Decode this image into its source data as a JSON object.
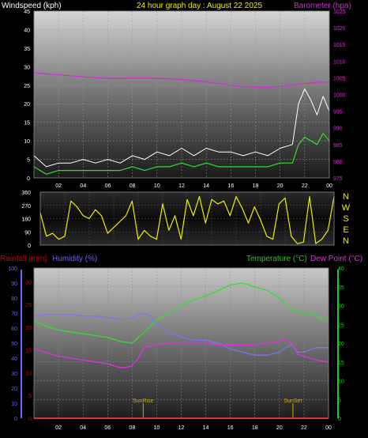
{
  "header": {
    "left_title": "Windspeed (kph)",
    "center_title": "24 hour graph day : August 22 2025",
    "right_title": "Barometer (hpa)"
  },
  "footer_titles": {
    "rain": "Rainfall (mm)",
    "humidity": "Humidity (%)",
    "temperature": "Temperature (°C)",
    "dewpoint": "Dew Point (°C)"
  },
  "annotations": {
    "sunrise": "SunRise",
    "sunset": "SunSet"
  },
  "colors": {
    "wind_gust": "#ffffff",
    "wind_avg": "#33dd33",
    "barometer": "#cc33cc",
    "direction": "#eeee00",
    "humidity": "#7777ee",
    "temperature": "#33dd33",
    "dewpoint": "#dd33dd",
    "rain": "#ff0000",
    "sun_marker": "#ccaa00",
    "rain_axis": "#cc0000",
    "humidity_axis": "#6666ff",
    "temp_axis": "#22cc22"
  },
  "chart_data": [
    {
      "type": "line",
      "title": "24 hour graph day : August 22 2025",
      "ylabel": "Windspeed (kph)",
      "y2label": "Barometer (hpa)",
      "xlim": [
        0,
        24
      ],
      "ylim": [
        0,
        45
      ],
      "y2lim": [
        975,
        1025
      ],
      "x_ticks": [
        "02",
        "04",
        "06",
        "08",
        "10",
        "12",
        "14",
        "16",
        "18",
        "20",
        "22",
        "00"
      ],
      "y_ticks": [
        "0",
        "5",
        "10",
        "15",
        "20",
        "25",
        "30",
        "35",
        "40",
        "45"
      ],
      "y2_ticks": [
        "975",
        "980",
        "985",
        "990",
        "995",
        "1000",
        "1005",
        "1010",
        "1015",
        "1020",
        "1025"
      ],
      "grid": true,
      "series": [
        {
          "name": "Windspeed (kph)",
          "color": "#ffffff",
          "x": [
            0,
            1,
            2,
            3,
            4,
            5,
            6,
            7,
            8,
            9,
            10,
            11,
            12,
            13,
            14,
            15,
            16,
            17,
            18,
            19,
            20,
            21,
            21.5,
            22,
            22.5,
            23,
            23.5,
            24
          ],
          "y": [
            6,
            3,
            4,
            4,
            5,
            4,
            5,
            4,
            6,
            5,
            7,
            6,
            8,
            6,
            8,
            7,
            7,
            6,
            7,
            6,
            8,
            9,
            20,
            24,
            21,
            17,
            22,
            18
          ]
        },
        {
          "name": "Wind avg",
          "color": "#33dd33",
          "x": [
            0,
            1,
            2,
            3,
            4,
            5,
            6,
            7,
            8,
            9,
            10,
            11,
            12,
            13,
            14,
            15,
            16,
            17,
            18,
            19,
            20,
            21,
            21.5,
            22,
            22.5,
            23,
            23.5,
            24
          ],
          "y": [
            3,
            1,
            2,
            2,
            2,
            2,
            2,
            2,
            3,
            2,
            3,
            3,
            4,
            3,
            4,
            3,
            3,
            3,
            3,
            3,
            4,
            4,
            9,
            11,
            10,
            9,
            12,
            10
          ]
        },
        {
          "name": "Barometer (hpa)",
          "color": "#cc33cc",
          "x": [
            0,
            1,
            2,
            3,
            4,
            5,
            6,
            7,
            8,
            9,
            10,
            11,
            12,
            13,
            14,
            15,
            16,
            17,
            18,
            19,
            20,
            21,
            22,
            23,
            24
          ],
          "y": [
            1006.5,
            1006.2,
            1005.9,
            1005.6,
            1005.3,
            1005.0,
            1004.8,
            1004.8,
            1004.9,
            1004.9,
            1004.8,
            1004.7,
            1004.5,
            1004.2,
            1003.8,
            1003.3,
            1002.8,
            1002.4,
            1002.1,
            1002.1,
            1002.4,
            1002.8,
            1003.3,
            1003.6,
            1003.8
          ]
        }
      ]
    },
    {
      "type": "line",
      "ylabel": "Wind direction",
      "xlim": [
        0,
        24
      ],
      "ylim": [
        0,
        360
      ],
      "y_ticks": [
        "0",
        "90",
        "180",
        "270",
        "360"
      ],
      "direction_labels": [
        "N",
        "W",
        "S",
        "E",
        "N"
      ],
      "series": [
        {
          "name": "Wind direction",
          "color": "#eeee00",
          "x": [
            0,
            0.5,
            1,
            1.5,
            2,
            2.5,
            3,
            3.5,
            4,
            4.5,
            5,
            5.5,
            6,
            6.5,
            7,
            7.5,
            8,
            8.5,
            9,
            9.5,
            10,
            10.5,
            11,
            11.5,
            12,
            12.5,
            13,
            13.5,
            14,
            14.5,
            15,
            15.5,
            16,
            16.5,
            17,
            17.5,
            18,
            18.5,
            19,
            19.5,
            20,
            20.5,
            21,
            21.5,
            22,
            22.5,
            23,
            23.5,
            24
          ],
          "y": [
            220,
            60,
            80,
            40,
            60,
            300,
            260,
            200,
            180,
            240,
            200,
            80,
            120,
            160,
            200,
            300,
            40,
            100,
            60,
            40,
            280,
            100,
            200,
            40,
            310,
            200,
            330,
            150,
            310,
            280,
            300,
            200,
            330,
            250,
            150,
            260,
            170,
            60,
            40,
            280,
            320,
            60,
            10,
            20,
            330,
            10,
            40,
            100,
            330
          ]
        }
      ]
    },
    {
      "type": "line",
      "xlim": [
        0,
        24
      ],
      "y_left_label": "Rainfall (mm)",
      "y_left2_label": "Humidity (%)",
      "y_right_label": "Temperature (°C)",
      "rain_ticks": [
        "0",
        "5",
        "10",
        "15",
        "20",
        "25",
        "30"
      ],
      "humidity_ticks": [
        "0",
        "10",
        "20",
        "30",
        "40",
        "50",
        "60",
        "70",
        "80",
        "90",
        "100"
      ],
      "temp_ticks": [
        "0",
        "5",
        "10",
        "15",
        "20",
        "25",
        "30",
        "35",
        "40"
      ],
      "x_ticks": [
        "02",
        "04",
        "06",
        "08",
        "10",
        "12",
        "14",
        "16",
        "18",
        "20",
        "22",
        "00"
      ],
      "sunrise_x": 8.9,
      "sunset_x": 21.1,
      "series": [
        {
          "name": "Humidity (%)",
          "axis": "humidity",
          "color": "#7777ee",
          "x": [
            0,
            1,
            2,
            3,
            4,
            5,
            6,
            7,
            7.5,
            8,
            8.5,
            9,
            9.5,
            10,
            11,
            12,
            13,
            14,
            15,
            16,
            17,
            18,
            19,
            20,
            20.5,
            21,
            21.5,
            22,
            23,
            24
          ],
          "y": [
            68,
            69,
            69,
            69,
            68,
            68,
            67,
            66,
            66,
            67,
            69,
            70,
            68,
            62,
            57,
            54,
            52,
            52,
            50,
            46,
            44,
            42,
            42,
            44,
            47,
            49,
            44,
            44,
            47,
            47
          ]
        },
        {
          "name": "Temperature (°C)",
          "axis": "temp",
          "color": "#33dd33",
          "x": [
            0,
            1,
            2,
            3,
            4,
            5,
            6,
            7,
            8,
            9,
            10,
            11,
            12,
            13,
            14,
            15,
            16,
            17,
            18,
            19,
            20,
            21,
            22,
            23,
            23.5,
            24
          ],
          "y": [
            26,
            24.5,
            23.5,
            23,
            22.5,
            22,
            21.5,
            20.5,
            20,
            23,
            26,
            28,
            30,
            31.5,
            32.5,
            34,
            35.5,
            36,
            35,
            34,
            32,
            29,
            28,
            27.5,
            26,
            27
          ]
        },
        {
          "name": "Dew Point (°C)",
          "axis": "temp",
          "color": "#dd33dd",
          "x": [
            0,
            1,
            2,
            3,
            4,
            5,
            6,
            7,
            7.5,
            8,
            8.5,
            9,
            10,
            11,
            12,
            13,
            14,
            15,
            16,
            17,
            18,
            19,
            20,
            20.5,
            21,
            21.5,
            22,
            23,
            24
          ],
          "y": [
            18.5,
            17.5,
            16.5,
            16,
            15.5,
            15,
            14.5,
            13.5,
            13.5,
            14,
            16,
            19,
            19.5,
            20,
            20,
            20,
            20,
            19.5,
            19.5,
            19.5,
            19.5,
            20,
            20.5,
            21,
            20,
            17,
            16.5,
            15.5,
            15
          ]
        },
        {
          "name": "Rainfall (mm)",
          "axis": "rain",
          "color": "#ff0000",
          "x": [
            0,
            24
          ],
          "y": [
            0,
            0
          ]
        }
      ]
    }
  ]
}
